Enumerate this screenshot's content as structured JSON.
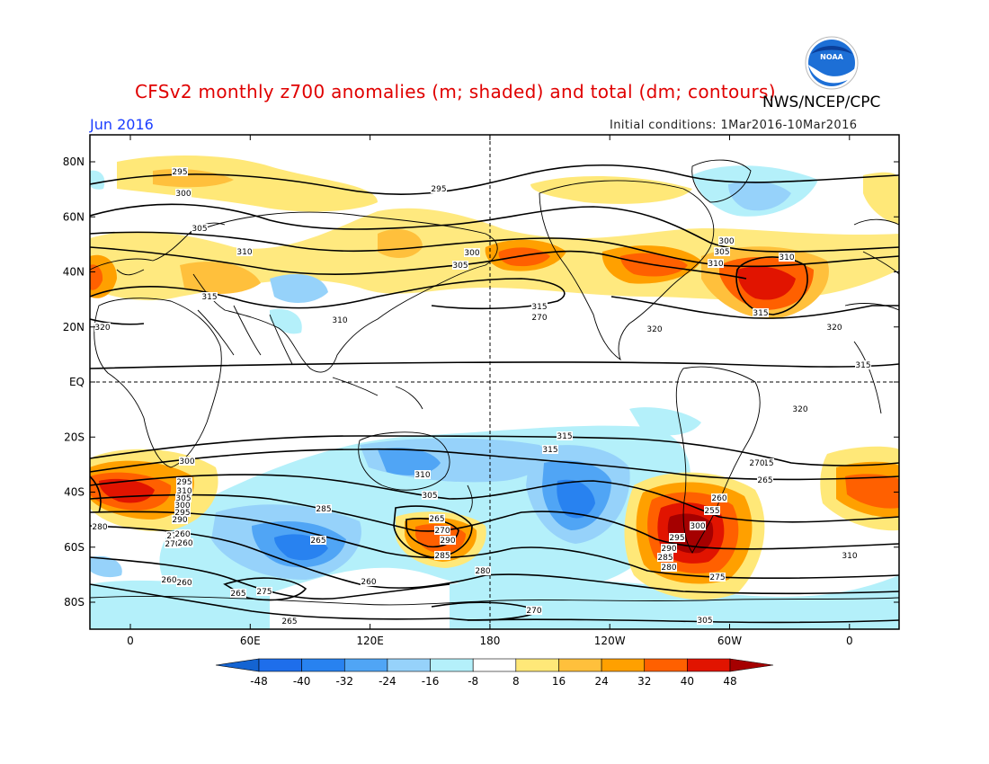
{
  "header": {
    "title": "CFSv2 monthly z700 anomalies (m; shaded) and total (dm; contours)",
    "agency": "NWS/NCEP/CPC",
    "valid_month": "Jun 2016",
    "initial_conditions": "Initial conditions: 1Mar2016-10Mar2016"
  },
  "logo": {
    "text": "NOAA",
    "name": "noaa-logo"
  },
  "axes": {
    "lat_labels": [
      "80N",
      "60N",
      "40N",
      "20N",
      "EQ",
      "20S",
      "40S",
      "60S",
      "80S"
    ],
    "lon_labels": [
      "0",
      "60E",
      "120E",
      "180",
      "120W",
      "60W",
      "0"
    ]
  },
  "colorbar": {
    "ticks": [
      "-48",
      "-40",
      "-32",
      "-24",
      "-16",
      "-8",
      "8",
      "16",
      "24",
      "32",
      "40",
      "48"
    ],
    "colors": [
      "#1464d2",
      "#1e6eeb",
      "#2882f0",
      "#50a5f5",
      "#96d2fa",
      "#b4f0fa",
      "#ffffff",
      "#ffe878",
      "#ffc03c",
      "#ffa000",
      "#ff6000",
      "#e11400",
      "#a50000"
    ]
  },
  "contour_labels": [
    "295",
    "300",
    "305",
    "310",
    "315",
    "320",
    "295",
    "300",
    "305",
    "310",
    "315",
    "320",
    "320",
    "315",
    "310",
    "300",
    "305",
    "310",
    "315",
    "320",
    "315",
    "315",
    "315",
    "310",
    "305",
    "300",
    "295",
    "310",
    "305",
    "300",
    "295",
    "290",
    "285",
    "280",
    "275",
    "270",
    "265",
    "260",
    "275",
    "265",
    "260",
    "265",
    "270",
    "290",
    "285",
    "280",
    "270",
    "260",
    "255",
    "300",
    "295",
    "290",
    "285",
    "280",
    "275",
    "270",
    "265",
    "310",
    "305",
    "260",
    "260",
    "265",
    "260",
    "270"
  ]
}
